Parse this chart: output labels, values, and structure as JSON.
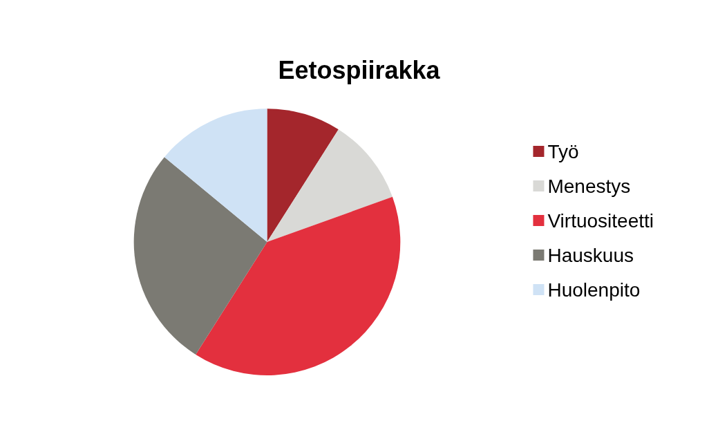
{
  "chart_data": {
    "type": "pie",
    "title": "Eetospiirakka",
    "categories": [
      "Työ",
      "Menestys",
      "Virtuositeetti",
      "Hauskuus",
      "Huolenpito"
    ],
    "values": [
      9,
      10.5,
      39.5,
      27,
      14
    ],
    "colors": [
      "#a4262c",
      "#d9d9d6",
      "#e3303e",
      "#7b7a73",
      "#cfe2f5"
    ],
    "legend": "right"
  }
}
